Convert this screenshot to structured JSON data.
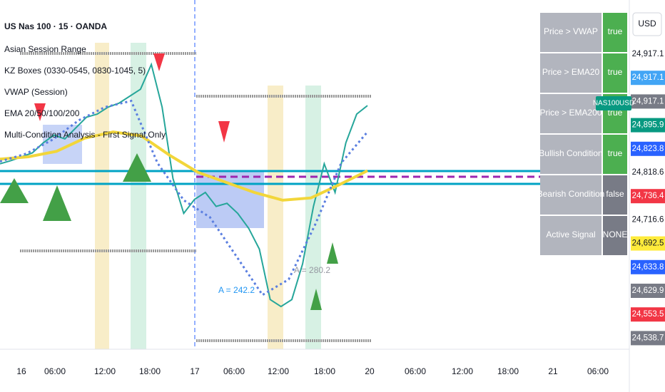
{
  "chart_data": {
    "type": "line",
    "symbol": "US Nas 100 · 15 · OANDA",
    "indicators": [
      "Asian Session Range",
      "KZ Boxes (0330-0545, 0830-1045, 5)",
      "VWAP (Session)",
      "EMA 20/50/100/200",
      "Multi-Condition Analysis - First Signal Only"
    ],
    "annotations": [
      "A = 242.2",
      "A = 280.2"
    ],
    "currency": "USD",
    "ticker_badge": "NAS100USD",
    "ylim": [
      24520,
      24970
    ],
    "time_labels": [
      "16",
      "06:00",
      "12:00",
      "18:00",
      "17",
      "06:00",
      "12:00",
      "18:00",
      "20",
      "06:00",
      "12:00",
      "18:00",
      "21",
      "06:00"
    ],
    "price_labels": [
      {
        "value": 24917.1,
        "label": "24,917.1",
        "color": "#ffffff"
      },
      {
        "value": 24917.1,
        "label": "24,917.1",
        "color": "#42a5f5"
      },
      {
        "value": 24917.1,
        "label": "24,917.1",
        "color": "#787b86"
      },
      {
        "value": 24895.9,
        "label": "24,895.9",
        "color": "#089981"
      },
      {
        "value": 24823.8,
        "label": "24,823.8",
        "color": "#2962ff"
      },
      {
        "value": 24818.6,
        "label": "24,818.6",
        "color": "#ffffff"
      },
      {
        "value": 24736.4,
        "label": "24,736.4",
        "color": "#f23645"
      },
      {
        "value": 24716.6,
        "label": "24,716.6",
        "color": "#ffffff"
      },
      {
        "value": 24692.5,
        "label": "24,692.5",
        "color": "#ffeb3b"
      },
      {
        "value": 24633.8,
        "label": "24,633.8",
        "color": "#2962ff"
      },
      {
        "value": 24629.9,
        "label": "24,629.9",
        "color": "#787b86"
      },
      {
        "value": 24553.5,
        "label": "24,553.5",
        "color": "#f23645"
      },
      {
        "value": 24538.7,
        "label": "24,538.7",
        "color": "#787b86"
      }
    ],
    "lines": [
      {
        "color": "#26a69a",
        "values": [
          24759,
          24763,
          24768,
          24773,
          24786,
          24796,
          24791,
          24805,
          24819,
          24823,
          24832,
          24837,
          24846,
          24855,
          24887,
          24832,
          24740,
          24695,
          24713,
          24722,
          24704,
          24708,
          24695,
          24676,
          24649,
          24584,
          24575,
          24584,
          24630,
          24704,
          24759,
          24722,
          24786,
          24823,
          24834
        ]
      },
      {
        "color": "#f2d63a",
        "values": [
          24765,
          24768,
          24775,
          24792,
          24800,
          24795,
          24770,
          24748,
          24735,
          24722,
          24712,
          24715,
          24732,
          24750
        ]
      },
      {
        "color": "#5b7fe0",
        "values": [
          24762,
          24772,
          24790,
          24815,
          24832,
          24840,
          24760,
          24712,
          24690,
          24640,
          24590,
          24610,
          24680,
          24760,
          24800
        ]
      }
    ],
    "table": {
      "rows": [
        [
          "Price > VWAP",
          "true"
        ],
        [
          "Price > EMA20",
          "true"
        ],
        [
          "Price > EMA200",
          "true"
        ],
        [
          "Bullish Condition",
          "true"
        ],
        [
          "Bearish Condition",
          "false"
        ],
        [
          "Active Signal",
          "NONE"
        ]
      ],
      "colors": [
        "#4caf50",
        "#4caf50",
        "#4caf50",
        "#4caf50",
        "#787b86",
        "#787b86"
      ]
    }
  }
}
